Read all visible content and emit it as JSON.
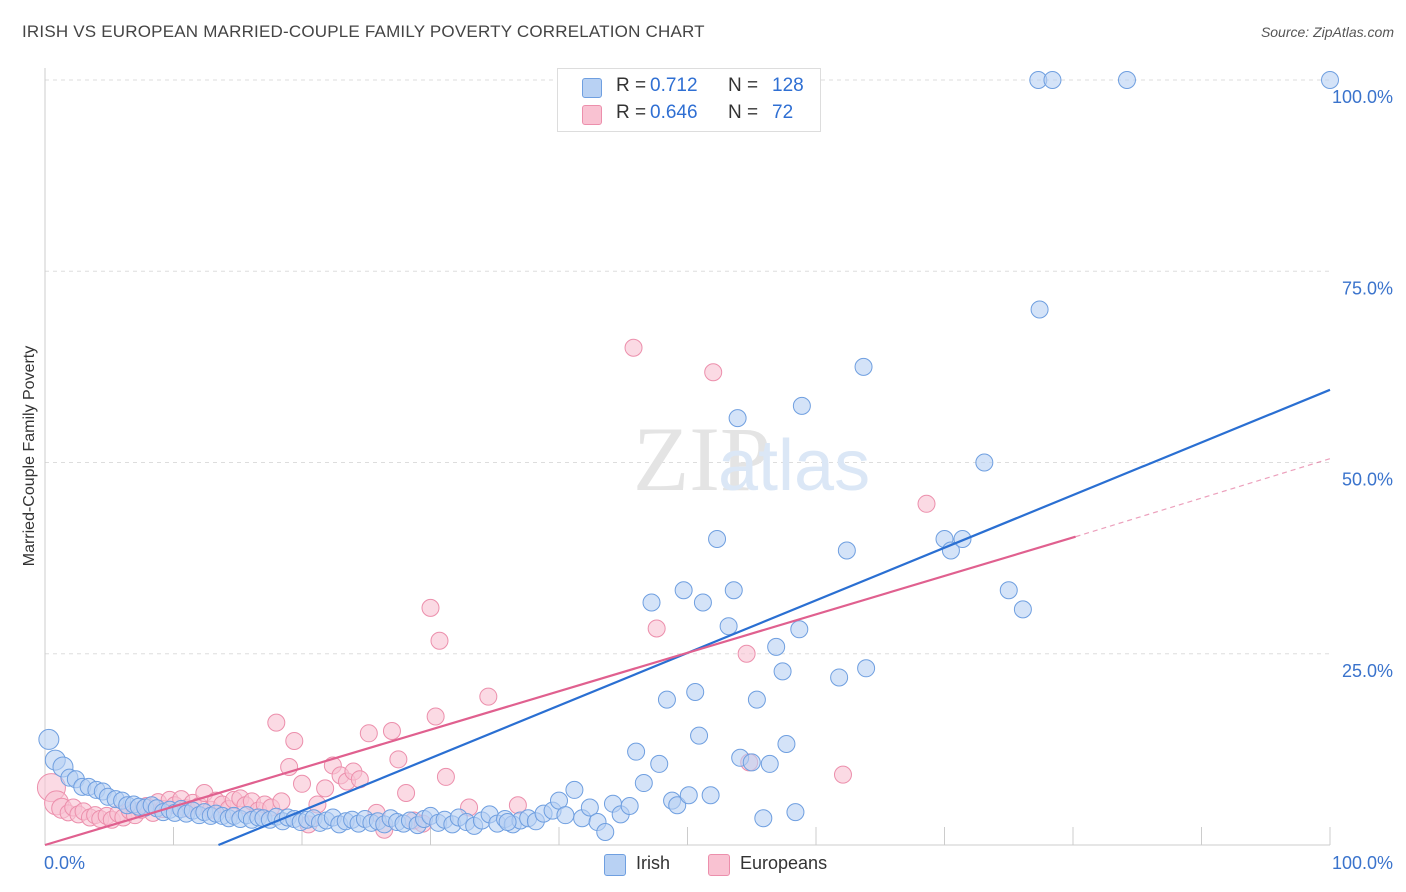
{
  "header": {
    "title": "IRISH VS EUROPEAN MARRIED-COUPLE FAMILY POVERTY CORRELATION CHART",
    "source": "Source: ZipAtlas.com"
  },
  "watermark": {
    "zip": "ZIP",
    "atlas": "atlas"
  },
  "stats": [
    {
      "r_label": "R =",
      "r_value": "0.712",
      "n_label": "N =",
      "n_value": "128"
    },
    {
      "r_label": "R =",
      "r_value": "0.646",
      "n_label": "N =",
      "n_value": "72"
    }
  ],
  "legend": {
    "irish": "Irish",
    "europeans": "Europeans"
  },
  "colors": {
    "irish_fill": "#b8d1f3",
    "irish_stroke": "#6f9fe0",
    "irish_line": "#2a6fd2",
    "euro_fill": "#f9c2d2",
    "euro_stroke": "#ec8fac",
    "euro_line": "#e0608f",
    "grid": "#dddddd",
    "tick_label": "#3a73cc"
  },
  "chart_data": {
    "type": "scatter",
    "title": "IRISH VS EUROPEAN MARRIED-COUPLE FAMILY POVERTY CORRELATION CHART",
    "xlabel": "",
    "ylabel": "Married-Couple Family Poverty",
    "xlim": [
      0,
      100
    ],
    "ylim": [
      0,
      100
    ],
    "x_tick_labels": [
      "0.0%",
      "100.0%"
    ],
    "y_ticks": [
      {
        "value": 25,
        "label": "25.0%"
      },
      {
        "value": 50,
        "label": "50.0%"
      },
      {
        "value": 75,
        "label": "75.0%"
      },
      {
        "value": 100,
        "label": "100.0%"
      }
    ],
    "grid": true,
    "series": [
      {
        "name": "Irish",
        "r": 0.712,
        "n": 128,
        "trend": {
          "x": [
            13.5,
            100
          ],
          "y": [
            0,
            59.5
          ]
        },
        "points": [
          [
            0.3,
            13.8
          ],
          [
            0.8,
            11.1
          ],
          [
            1.4,
            10.2
          ],
          [
            1.9,
            8.8
          ],
          [
            2.4,
            8.6
          ],
          [
            2.9,
            7.6
          ],
          [
            3.4,
            7.6
          ],
          [
            4.0,
            7.2
          ],
          [
            4.5,
            7.0
          ],
          [
            4.9,
            6.3
          ],
          [
            5.5,
            6.0
          ],
          [
            6.0,
            5.8
          ],
          [
            6.4,
            5.2
          ],
          [
            6.9,
            5.3
          ],
          [
            7.3,
            5.0
          ],
          [
            7.8,
            4.9
          ],
          [
            8.3,
            5.2
          ],
          [
            8.7,
            4.8
          ],
          [
            9.2,
            4.3
          ],
          [
            9.7,
            4.6
          ],
          [
            10.1,
            4.2
          ],
          [
            10.6,
            4.7
          ],
          [
            11.0,
            4.1
          ],
          [
            11.5,
            4.5
          ],
          [
            12.0,
            3.9
          ],
          [
            12.4,
            4.3
          ],
          [
            12.9,
            3.8
          ],
          [
            13.3,
            4.1
          ],
          [
            13.8,
            3.8
          ],
          [
            14.3,
            3.5
          ],
          [
            14.7,
            3.8
          ],
          [
            15.2,
            3.4
          ],
          [
            15.7,
            3.9
          ],
          [
            16.1,
            3.3
          ],
          [
            16.6,
            3.6
          ],
          [
            17.0,
            3.5
          ],
          [
            17.5,
            3.3
          ],
          [
            18.0,
            3.7
          ],
          [
            18.5,
            3.1
          ],
          [
            18.9,
            3.6
          ],
          [
            19.4,
            3.4
          ],
          [
            19.9,
            3.0
          ],
          [
            20.4,
            3.3
          ],
          [
            20.9,
            3.5
          ],
          [
            21.4,
            2.9
          ],
          [
            21.9,
            3.2
          ],
          [
            22.4,
            3.6
          ],
          [
            22.9,
            2.7
          ],
          [
            23.4,
            3.1
          ],
          [
            23.9,
            3.3
          ],
          [
            24.4,
            2.8
          ],
          [
            24.9,
            3.4
          ],
          [
            25.4,
            2.9
          ],
          [
            25.9,
            3.1
          ],
          [
            26.4,
            2.7
          ],
          [
            26.9,
            3.5
          ],
          [
            27.4,
            3.0
          ],
          [
            27.9,
            2.8
          ],
          [
            28.4,
            3.2
          ],
          [
            29.0,
            2.6
          ],
          [
            29.5,
            3.4
          ],
          [
            30.0,
            3.8
          ],
          [
            30.6,
            2.9
          ],
          [
            31.1,
            3.3
          ],
          [
            31.7,
            2.7
          ],
          [
            32.2,
            3.6
          ],
          [
            32.8,
            3.0
          ],
          [
            33.4,
            2.5
          ],
          [
            34.0,
            3.2
          ],
          [
            34.6,
            4.0
          ],
          [
            35.2,
            2.8
          ],
          [
            35.8,
            3.4
          ],
          [
            36.4,
            2.7
          ],
          [
            37.0,
            3.2
          ],
          [
            37.6,
            3.5
          ],
          [
            38.2,
            3.1
          ],
          [
            38.8,
            4.1
          ],
          [
            36.0,
            3.0
          ],
          [
            39.5,
            4.5
          ],
          [
            40.0,
            5.8
          ],
          [
            40.5,
            3.9
          ],
          [
            41.2,
            7.2
          ],
          [
            41.8,
            3.5
          ],
          [
            42.4,
            4.9
          ],
          [
            43.0,
            3.0
          ],
          [
            43.6,
            1.7
          ],
          [
            44.2,
            5.4
          ],
          [
            44.8,
            4.0
          ],
          [
            45.5,
            5.1
          ],
          [
            46.0,
            12.2
          ],
          [
            46.6,
            8.1
          ],
          [
            47.2,
            31.7
          ],
          [
            47.8,
            10.6
          ],
          [
            48.4,
            19.0
          ],
          [
            48.8,
            5.8
          ],
          [
            49.2,
            5.2
          ],
          [
            49.7,
            33.3
          ],
          [
            50.1,
            6.5
          ],
          [
            50.6,
            20.0
          ],
          [
            50.9,
            14.3
          ],
          [
            51.2,
            31.7
          ],
          [
            51.8,
            6.5
          ],
          [
            52.3,
            40.0
          ],
          [
            53.2,
            28.6
          ],
          [
            53.6,
            33.3
          ],
          [
            54.1,
            11.4
          ],
          [
            53.9,
            55.8
          ],
          [
            55.0,
            10.8
          ],
          [
            55.4,
            19.0
          ],
          [
            55.9,
            3.5
          ],
          [
            56.4,
            10.6
          ],
          [
            56.9,
            25.9
          ],
          [
            57.4,
            22.7
          ],
          [
            57.7,
            13.2
          ],
          [
            58.4,
            4.3
          ],
          [
            58.7,
            28.2
          ],
          [
            58.9,
            57.4
          ],
          [
            61.8,
            21.9
          ],
          [
            62.4,
            38.5
          ],
          [
            63.7,
            62.5
          ],
          [
            63.9,
            23.1
          ],
          [
            70.0,
            40.0
          ],
          [
            70.5,
            38.5
          ],
          [
            71.4,
            40.0
          ],
          [
            73.1,
            50.0
          ],
          [
            75.0,
            33.3
          ],
          [
            76.1,
            30.8
          ],
          [
            77.4,
            70.0
          ],
          [
            77.3,
            100
          ],
          [
            78.4,
            100
          ],
          [
            84.2,
            100
          ],
          [
            100,
            100
          ]
        ]
      },
      {
        "name": "Europeans",
        "r": 0.646,
        "n": 72,
        "trend": {
          "x": [
            0,
            80.2
          ],
          "y": [
            0,
            40.3
          ]
        },
        "trend_extension": {
          "x": [
            80.2,
            100
          ],
          "y": [
            40.3,
            50.5
          ]
        },
        "points": [
          [
            0.5,
            7.5
          ],
          [
            0.9,
            5.5
          ],
          [
            1.3,
            4.8
          ],
          [
            1.8,
            4.2
          ],
          [
            2.2,
            4.9
          ],
          [
            2.6,
            4.0
          ],
          [
            3.0,
            4.4
          ],
          [
            3.5,
            3.6
          ],
          [
            3.9,
            3.9
          ],
          [
            4.3,
            3.4
          ],
          [
            4.8,
            3.8
          ],
          [
            5.2,
            3.3
          ],
          [
            5.7,
            4.1
          ],
          [
            6.1,
            3.6
          ],
          [
            6.6,
            4.5
          ],
          [
            7.0,
            3.9
          ],
          [
            7.5,
            4.6
          ],
          [
            7.9,
            5.1
          ],
          [
            8.4,
            4.2
          ],
          [
            8.8,
            5.6
          ],
          [
            9.2,
            4.7
          ],
          [
            9.7,
            5.9
          ],
          [
            10.1,
            5.2
          ],
          [
            10.6,
            6.0
          ],
          [
            11.0,
            4.8
          ],
          [
            11.5,
            5.5
          ],
          [
            12.0,
            5.1
          ],
          [
            12.4,
            6.8
          ],
          [
            12.9,
            4.6
          ],
          [
            13.3,
            5.8
          ],
          [
            13.8,
            5.3
          ],
          [
            14.3,
            4.7
          ],
          [
            14.7,
            5.9
          ],
          [
            15.2,
            6.1
          ],
          [
            15.6,
            5.2
          ],
          [
            16.1,
            5.7
          ],
          [
            16.6,
            4.5
          ],
          [
            17.1,
            5.3
          ],
          [
            17.6,
            4.9
          ],
          [
            18.0,
            16.0
          ],
          [
            18.4,
            5.7
          ],
          [
            19.0,
            10.2
          ],
          [
            19.4,
            13.6
          ],
          [
            20.0,
            8.0
          ],
          [
            20.5,
            2.7
          ],
          [
            21.2,
            5.3
          ],
          [
            21.8,
            7.4
          ],
          [
            22.4,
            10.4
          ],
          [
            23.0,
            9.1
          ],
          [
            23.5,
            8.3
          ],
          [
            24.0,
            9.6
          ],
          [
            24.5,
            8.6
          ],
          [
            25.2,
            14.6
          ],
          [
            25.8,
            4.2
          ],
          [
            26.4,
            2.0
          ],
          [
            27.0,
            14.9
          ],
          [
            27.5,
            11.2
          ],
          [
            28.1,
            6.8
          ],
          [
            28.7,
            3.2
          ],
          [
            29.4,
            2.8
          ],
          [
            30.0,
            31.0
          ],
          [
            30.4,
            16.8
          ],
          [
            30.7,
            26.7
          ],
          [
            31.2,
            8.9
          ],
          [
            33.0,
            4.9
          ],
          [
            34.5,
            19.4
          ],
          [
            36.8,
            5.2
          ],
          [
            45.8,
            65.0
          ],
          [
            47.6,
            28.3
          ],
          [
            52.0,
            61.8
          ],
          [
            54.6,
            25.0
          ],
          [
            54.8,
            10.8
          ],
          [
            62.1,
            9.2
          ],
          [
            68.6,
            44.6
          ]
        ]
      }
    ]
  }
}
